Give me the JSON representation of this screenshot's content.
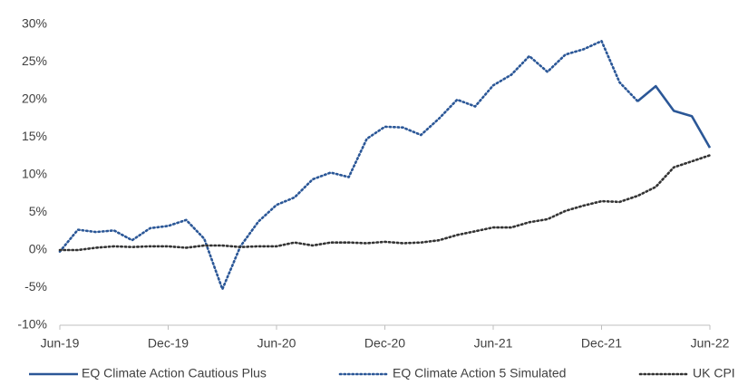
{
  "chart_data": {
    "type": "line",
    "categories": [
      "Jun-19",
      null,
      null,
      null,
      null,
      null,
      "Dec-19",
      null,
      null,
      null,
      null,
      null,
      "Jun-20",
      null,
      null,
      null,
      null,
      null,
      "Dec-20",
      null,
      null,
      null,
      null,
      null,
      "Jun-21",
      null,
      null,
      null,
      null,
      null,
      "Dec-21",
      null,
      null,
      null,
      null,
      null,
      "Jun-22"
    ],
    "series": [
      {
        "name": "EQ Climate Action Cautious Plus",
        "color": "#2b5797",
        "dash": "solid",
        "values": [
          null,
          null,
          null,
          null,
          null,
          null,
          null,
          null,
          null,
          null,
          null,
          null,
          null,
          null,
          null,
          null,
          null,
          null,
          null,
          null,
          null,
          null,
          null,
          null,
          null,
          null,
          null,
          null,
          null,
          null,
          null,
          null,
          19.8,
          21.8,
          18.5,
          17.8,
          13.6
        ]
      },
      {
        "name": "EQ Climate Action 5 Simulated",
        "color": "#2b5797",
        "dash": "dotted",
        "values": [
          -0.2,
          2.7,
          2.4,
          2.6,
          1.3,
          2.9,
          3.2,
          4.0,
          1.5,
          -5.2,
          0.5,
          3.8,
          6.0,
          7.0,
          9.4,
          10.3,
          9.7,
          14.8,
          16.4,
          16.3,
          15.3,
          17.5,
          20.0,
          19.1,
          21.9,
          23.3,
          25.8,
          23.7,
          26.0,
          26.7,
          27.8,
          22.3,
          19.8,
          null,
          null,
          null,
          null
        ]
      },
      {
        "name": "UK CPI",
        "color": "#333333",
        "dash": "dotted",
        "values": [
          0,
          0,
          0.3,
          0.5,
          0.4,
          0.5,
          0.5,
          0.3,
          0.6,
          0.6,
          0.4,
          0.5,
          0.5,
          1.0,
          0.6,
          1.0,
          1.0,
          0.9,
          1.1,
          0.9,
          1.0,
          1.3,
          2.0,
          2.5,
          3.0,
          3.0,
          3.7,
          4.1,
          5.2,
          5.9,
          6.5,
          6.4,
          7.2,
          8.4,
          11.0,
          11.8,
          12.6
        ]
      }
    ],
    "ylim": [
      -10,
      30
    ],
    "yticks": [
      {
        "value": -10,
        "label": "-10%"
      },
      {
        "value": -5,
        "label": "-5%"
      },
      {
        "value": 0,
        "label": "0%"
      },
      {
        "value": 5,
        "label": "5%"
      },
      {
        "value": 10,
        "label": "10%"
      },
      {
        "value": 15,
        "label": "15%"
      },
      {
        "value": 20,
        "label": "20%"
      },
      {
        "value": 25,
        "label": "25%"
      },
      {
        "value": 30,
        "label": "30%"
      }
    ],
    "grid": false,
    "legend": "bottom"
  }
}
